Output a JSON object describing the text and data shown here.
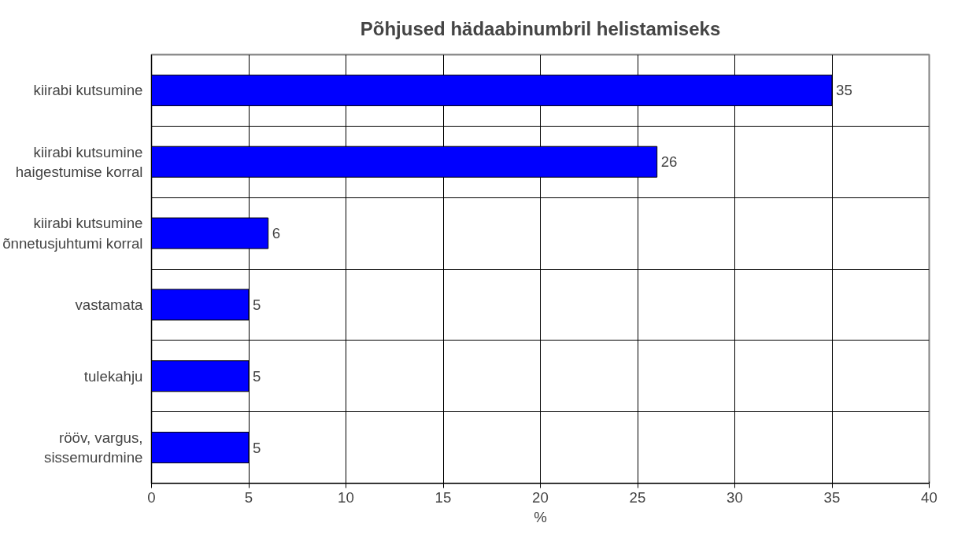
{
  "chart_data": {
    "type": "bar",
    "orientation": "horizontal",
    "title": "Põhjused hädaabinumbril helistamiseks",
    "xlabel": "%",
    "categories": [
      "kiirabi kutsumine",
      "kiirabi kutsumine haigestumise korral",
      "kiirabi kutsumine õnnetusjuhtumi korral",
      "vastamata",
      "tulekahju",
      "rööv, vargus, sissemurdmine"
    ],
    "values": [
      35,
      26,
      6,
      5,
      5,
      5
    ],
    "color": "#0000ff",
    "xlim": [
      0,
      40
    ],
    "xticks": [
      0,
      5,
      10,
      15,
      20,
      25,
      30,
      35,
      40
    ],
    "grid": true,
    "data_labels": true
  }
}
